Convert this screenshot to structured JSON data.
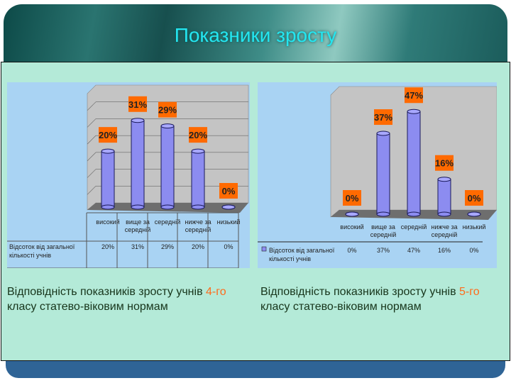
{
  "slide": {
    "title": "Показники зросту"
  },
  "captions": [
    {
      "before": "Відповідність показників зросту учнів ",
      "highlight": "4-го",
      "after": " класу статево-віковим нормам"
    },
    {
      "before": "Відповідність показників зросту учнів ",
      "highlight": "5-го",
      "after": " класу статево-віковим нормам"
    }
  ],
  "colors": {
    "bar": "#8c8cf0",
    "label_box": "#ff6a00",
    "highlight": "#ff6a1a",
    "chart_bg": "#a9d3f3",
    "panel": "#b4ead8",
    "title": "#24e6f0"
  },
  "chart_data": [
    {
      "type": "bar",
      "style": "3d-cylinder",
      "categories": [
        "високий",
        "вище за середній",
        "середній",
        "нижче за середній",
        "низький"
      ],
      "series": [
        {
          "name": "Відсоток від загальної кількості учнів",
          "values": [
            20,
            31,
            29,
            20,
            0
          ]
        }
      ],
      "data_labels": [
        "20%",
        "31%",
        "29%",
        "20%",
        "0%"
      ],
      "ylim": [
        0,
        35
      ],
      "grid": true,
      "legend": "data-table"
    },
    {
      "type": "bar",
      "style": "3d-cylinder",
      "categories": [
        "високий",
        "вище за середній",
        "середній",
        "нижче за середній",
        "низький"
      ],
      "series": [
        {
          "name": "Відсоток від загальної кількості учнів",
          "values": [
            0,
            37,
            47,
            16,
            0
          ]
        }
      ],
      "data_labels": [
        "0%",
        "37%",
        "47%",
        "16%",
        "0%"
      ],
      "ylim": [
        0,
        50
      ],
      "grid": false,
      "legend": "data-table"
    }
  ]
}
